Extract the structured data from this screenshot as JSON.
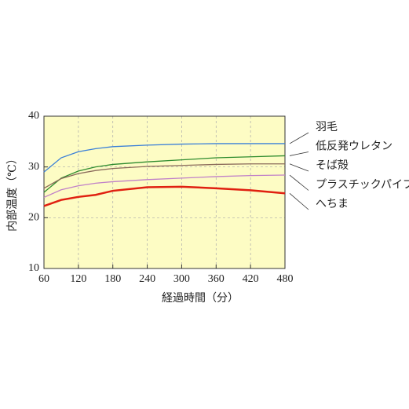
{
  "chart_data": {
    "type": "line",
    "xlabel": "経過時間（分）",
    "ylabel": "内部温度（℃）",
    "x": [
      60,
      90,
      120,
      150,
      180,
      240,
      300,
      360,
      420,
      480
    ],
    "series": [
      {
        "name": "羽毛",
        "color": "#3a7fd8",
        "values": [
          29,
          31.8,
          33,
          33.6,
          34,
          34.3,
          34.5,
          34.6,
          34.6,
          34.6
        ]
      },
      {
        "name": "低反発ウレタン",
        "color": "#2e8b2e",
        "values": [
          25,
          27.8,
          29.2,
          30,
          30.5,
          31,
          31.4,
          31.8,
          32,
          32.2
        ]
      },
      {
        "name": "そば殻",
        "color": "#8a6a5a",
        "values": [
          25.8,
          27.7,
          28.7,
          29.3,
          29.7,
          30.1,
          30.3,
          30.5,
          30.6,
          30.6
        ]
      },
      {
        "name": "プラスチックパイプ",
        "color": "#c080c8",
        "values": [
          24,
          25.5,
          26.3,
          26.8,
          27.1,
          27.5,
          27.8,
          28.1,
          28.3,
          28.4
        ]
      },
      {
        "name": "へちま",
        "color": "#e02010",
        "values": [
          22.3,
          23.5,
          24.1,
          24.5,
          25.3,
          26,
          26.1,
          25.8,
          25.4,
          24.8
        ]
      }
    ],
    "xlim": [
      60,
      480
    ],
    "xticks": [
      60,
      120,
      180,
      240,
      300,
      360,
      420,
      480
    ],
    "ylim": [
      10,
      40
    ],
    "yticks": [
      10,
      20,
      30,
      40
    ],
    "grid": true,
    "background": "#fdfcc4"
  }
}
